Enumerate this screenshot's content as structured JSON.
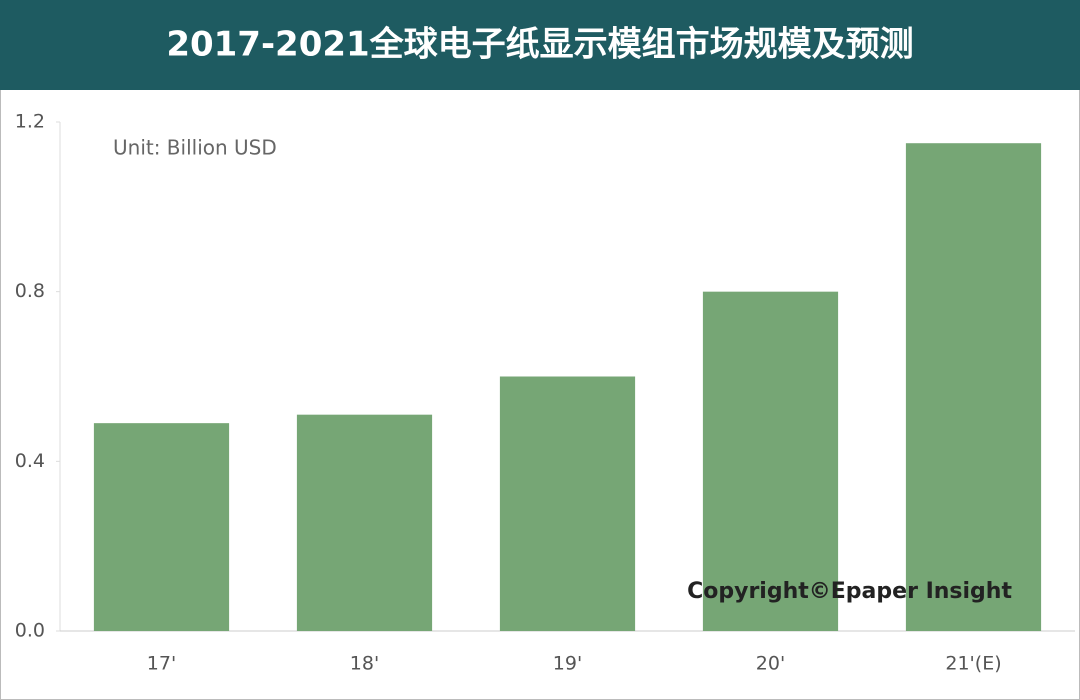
{
  "chart_data": {
    "type": "bar",
    "title": "2017-2021全球电子纸显示模组市场规模及预测",
    "annotations": [
      "Unit: Billion USD",
      "Copyright©Epaper Insight"
    ],
    "categories": [
      "17'",
      "18'",
      "19'",
      "20'",
      "21'(E)"
    ],
    "values": [
      0.49,
      0.51,
      0.6,
      0.8,
      1.15
    ],
    "color": "#76a675",
    "ylim": [
      0,
      1.2
    ],
    "yticks": [
      {
        "value": 0,
        "label": "0.0"
      },
      0.4,
      0.8,
      1.2
    ],
    "grid": false
  }
}
